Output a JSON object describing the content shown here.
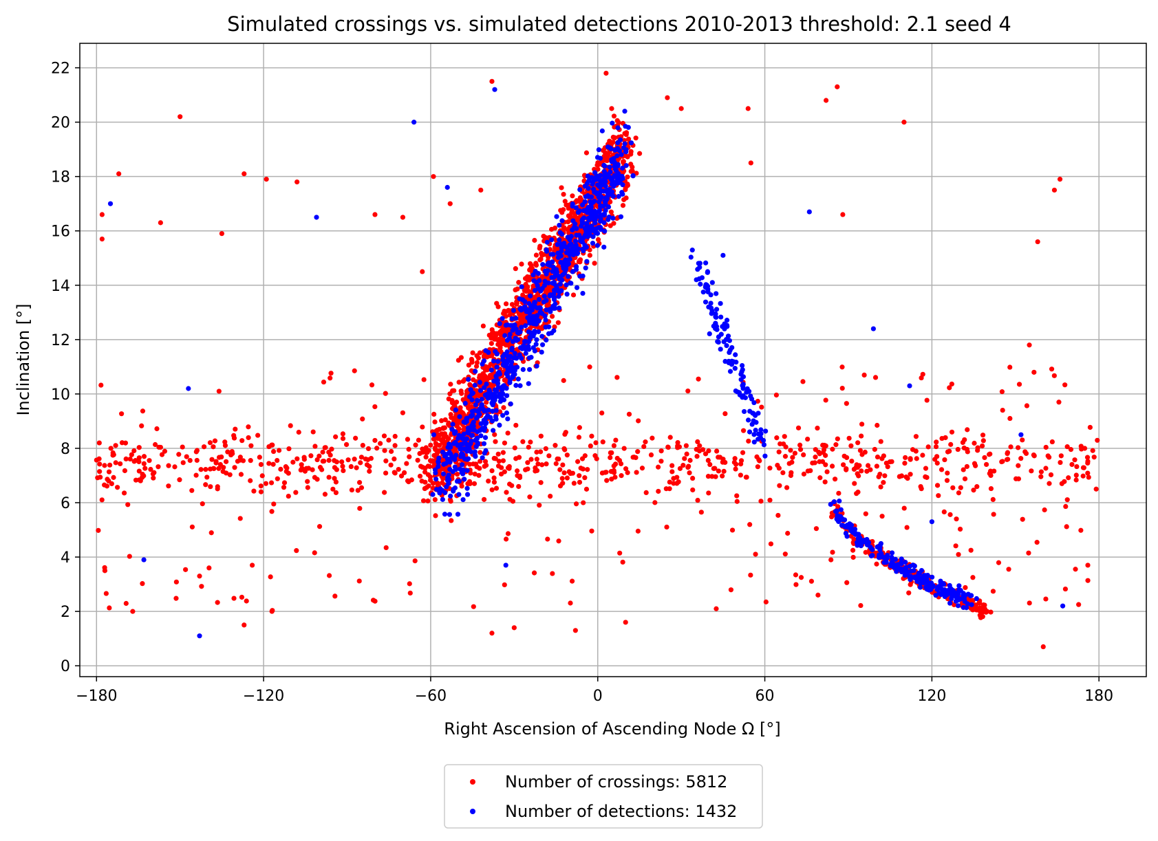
{
  "chart_data": {
    "type": "scatter",
    "title": "Simulated crossings vs. simulated detections 2010-2013  threshold: 2.1 seed 4",
    "xlabel": "Right Ascension of Ascending Node Ω [°]",
    "ylabel": "Inclination [°]",
    "xlim": [
      -186,
      197
    ],
    "ylim": [
      -0.4,
      22.9
    ],
    "x_ticks": [
      -180,
      -120,
      -60,
      0,
      60,
      120,
      180
    ],
    "y_ticks": [
      0,
      2,
      4,
      6,
      8,
      10,
      12,
      14,
      16,
      18,
      20,
      22
    ],
    "grid": true,
    "legend_placement": "bottom-center",
    "series": [
      {
        "name": "Number of crossings: 5812",
        "color": "#ff0000",
        "clusters": [
          {
            "region": "main diagonal band",
            "x_range": [
              -60,
              10
            ],
            "y_range": [
              7,
              19
            ],
            "approx_points": 1600
          },
          {
            "region": "background across 8 deg plateau",
            "x_range": [
              -180,
              180
            ],
            "y_range": [
              5,
              10
            ],
            "approx_points": 900
          },
          {
            "region": "descending tail",
            "x_range": [
              85,
              140
            ],
            "y_range": [
              2,
              6
            ],
            "approx_points": 250
          }
        ],
        "points": [
          {
            "x": -179,
            "y": 8.2
          },
          {
            "x": -178,
            "y": 16.6
          },
          {
            "x": -178,
            "y": 15.7
          },
          {
            "x": -177,
            "y": 3.5
          },
          {
            "x": -172,
            "y": 18.1
          },
          {
            "x": -167,
            "y": 2.0
          },
          {
            "x": -157,
            "y": 16.3
          },
          {
            "x": -150,
            "y": 20.2
          },
          {
            "x": -143,
            "y": 3.3
          },
          {
            "x": -136,
            "y": 10.1
          },
          {
            "x": -135,
            "y": 15.9
          },
          {
            "x": -127,
            "y": 18.1
          },
          {
            "x": -127,
            "y": 1.5
          },
          {
            "x": -119,
            "y": 17.9
          },
          {
            "x": -117,
            "y": 2.0
          },
          {
            "x": -108,
            "y": 17.8
          },
          {
            "x": -80,
            "y": 16.6
          },
          {
            "x": -70,
            "y": 16.5
          },
          {
            "x": -63,
            "y": 14.5
          },
          {
            "x": -59,
            "y": 18.0
          },
          {
            "x": -53,
            "y": 17.0
          },
          {
            "x": -42,
            "y": 17.5
          },
          {
            "x": -38,
            "y": 21.5
          },
          {
            "x": -38,
            "y": 1.2
          },
          {
            "x": -30,
            "y": 1.4
          },
          {
            "x": -8,
            "y": 1.3
          },
          {
            "x": 3,
            "y": 21.8
          },
          {
            "x": 5,
            "y": 20.5
          },
          {
            "x": 25,
            "y": 20.9
          },
          {
            "x": 30,
            "y": 20.5
          },
          {
            "x": 54,
            "y": 20.5
          },
          {
            "x": 55,
            "y": 18.5
          },
          {
            "x": 82,
            "y": 20.8
          },
          {
            "x": 86,
            "y": 21.3
          },
          {
            "x": 110,
            "y": 20.0
          },
          {
            "x": 155,
            "y": 11.8
          },
          {
            "x": 158,
            "y": 15.6
          },
          {
            "x": 160,
            "y": 0.7
          },
          {
            "x": 164,
            "y": 17.5
          },
          {
            "x": 166,
            "y": 17.9
          },
          {
            "x": 176,
            "y": 3.7
          },
          {
            "x": 179,
            "y": 6.5
          },
          {
            "x": 10,
            "y": 1.6
          },
          {
            "x": 88,
            "y": 16.6
          }
        ]
      },
      {
        "name": "Number of detections: 1432",
        "color": "#0000ff",
        "clusters": [
          {
            "region": "main diagonal band",
            "x_range": [
              -55,
              10
            ],
            "y_range": [
              7,
              19
            ],
            "approx_points": 800
          },
          {
            "region": "middle descending arm",
            "x_range": [
              35,
              60
            ],
            "y_range": [
              8,
              15
            ],
            "approx_points": 120
          },
          {
            "region": "descending tail",
            "x_range": [
              85,
              135
            ],
            "y_range": [
              2.3,
              6
            ],
            "approx_points": 220
          }
        ],
        "points": [
          {
            "x": -175,
            "y": 17.0
          },
          {
            "x": -163,
            "y": 3.9
          },
          {
            "x": -147,
            "y": 10.2
          },
          {
            "x": -143,
            "y": 1.1
          },
          {
            "x": -101,
            "y": 16.5
          },
          {
            "x": -66,
            "y": 20.0
          },
          {
            "x": -54,
            "y": 17.6
          },
          {
            "x": -37,
            "y": 21.2
          },
          {
            "x": 76,
            "y": 16.7
          },
          {
            "x": 99,
            "y": 12.4
          },
          {
            "x": 112,
            "y": 10.3
          },
          {
            "x": 152,
            "y": 8.5
          },
          {
            "x": 167,
            "y": 2.2
          },
          {
            "x": 120,
            "y": 5.3
          },
          {
            "x": 45,
            "y": 15.1
          },
          {
            "x": -33,
            "y": 3.7
          }
        ]
      }
    ]
  }
}
